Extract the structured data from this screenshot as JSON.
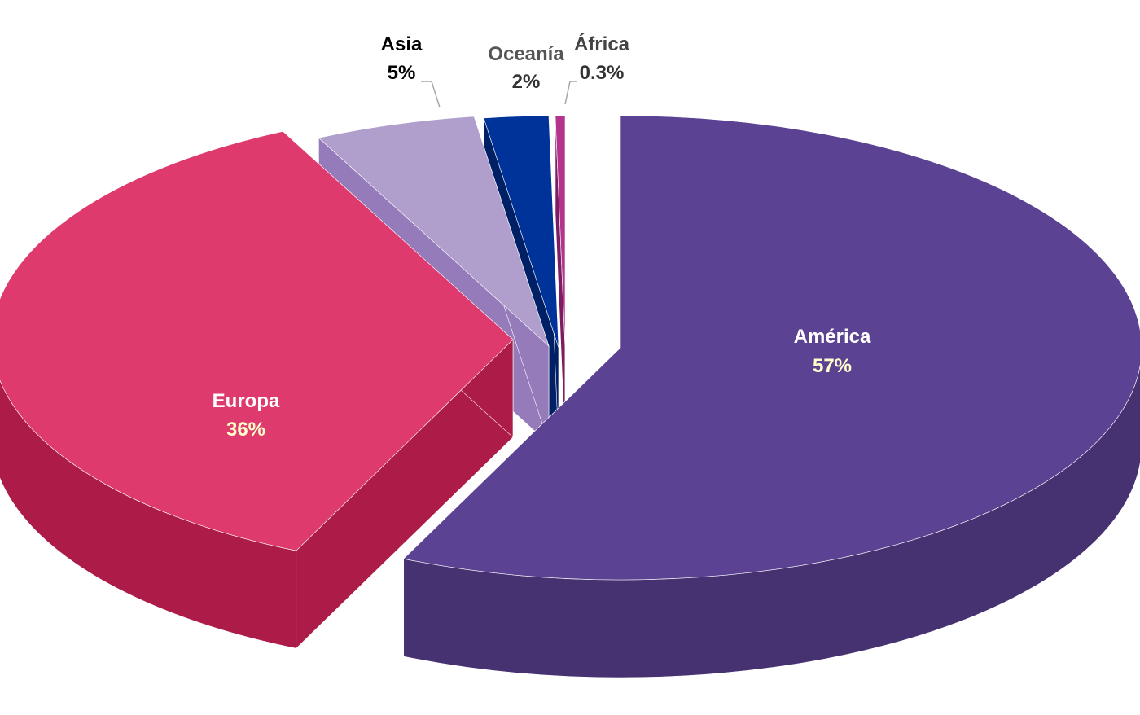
{
  "chart_data": {
    "type": "pie",
    "variant": "3d-exploded",
    "title": "",
    "slices": [
      {
        "name": "América",
        "value": 57,
        "value_label": "57%",
        "color": "#5b4293",
        "side_color": "#463271",
        "label_color": "#ffffff",
        "value_color": "#ffffcc"
      },
      {
        "name": "Europa",
        "value": 36,
        "value_label": "36%",
        "color": "#de3a6e",
        "side_color": "#ad1b48",
        "label_color": "#ffffff",
        "value_color": "#ffffcc"
      },
      {
        "name": "Asia",
        "value": 5,
        "value_label": "5%",
        "color": "#b09ecc",
        "side_color": "#957bba",
        "label_color": "#000000",
        "value_color": "#000000"
      },
      {
        "name": "Oceanía",
        "value": 2,
        "value_label": "2%",
        "color": "#00339a",
        "side_color": "#002066",
        "label_color": "#555555",
        "value_color": "#333333"
      },
      {
        "name": "África",
        "value": 0.3,
        "value_label": "0.3%",
        "color": "#b2348c",
        "side_color": "#7d1d61",
        "label_color": "#444444",
        "value_color": "#333333"
      }
    ]
  }
}
